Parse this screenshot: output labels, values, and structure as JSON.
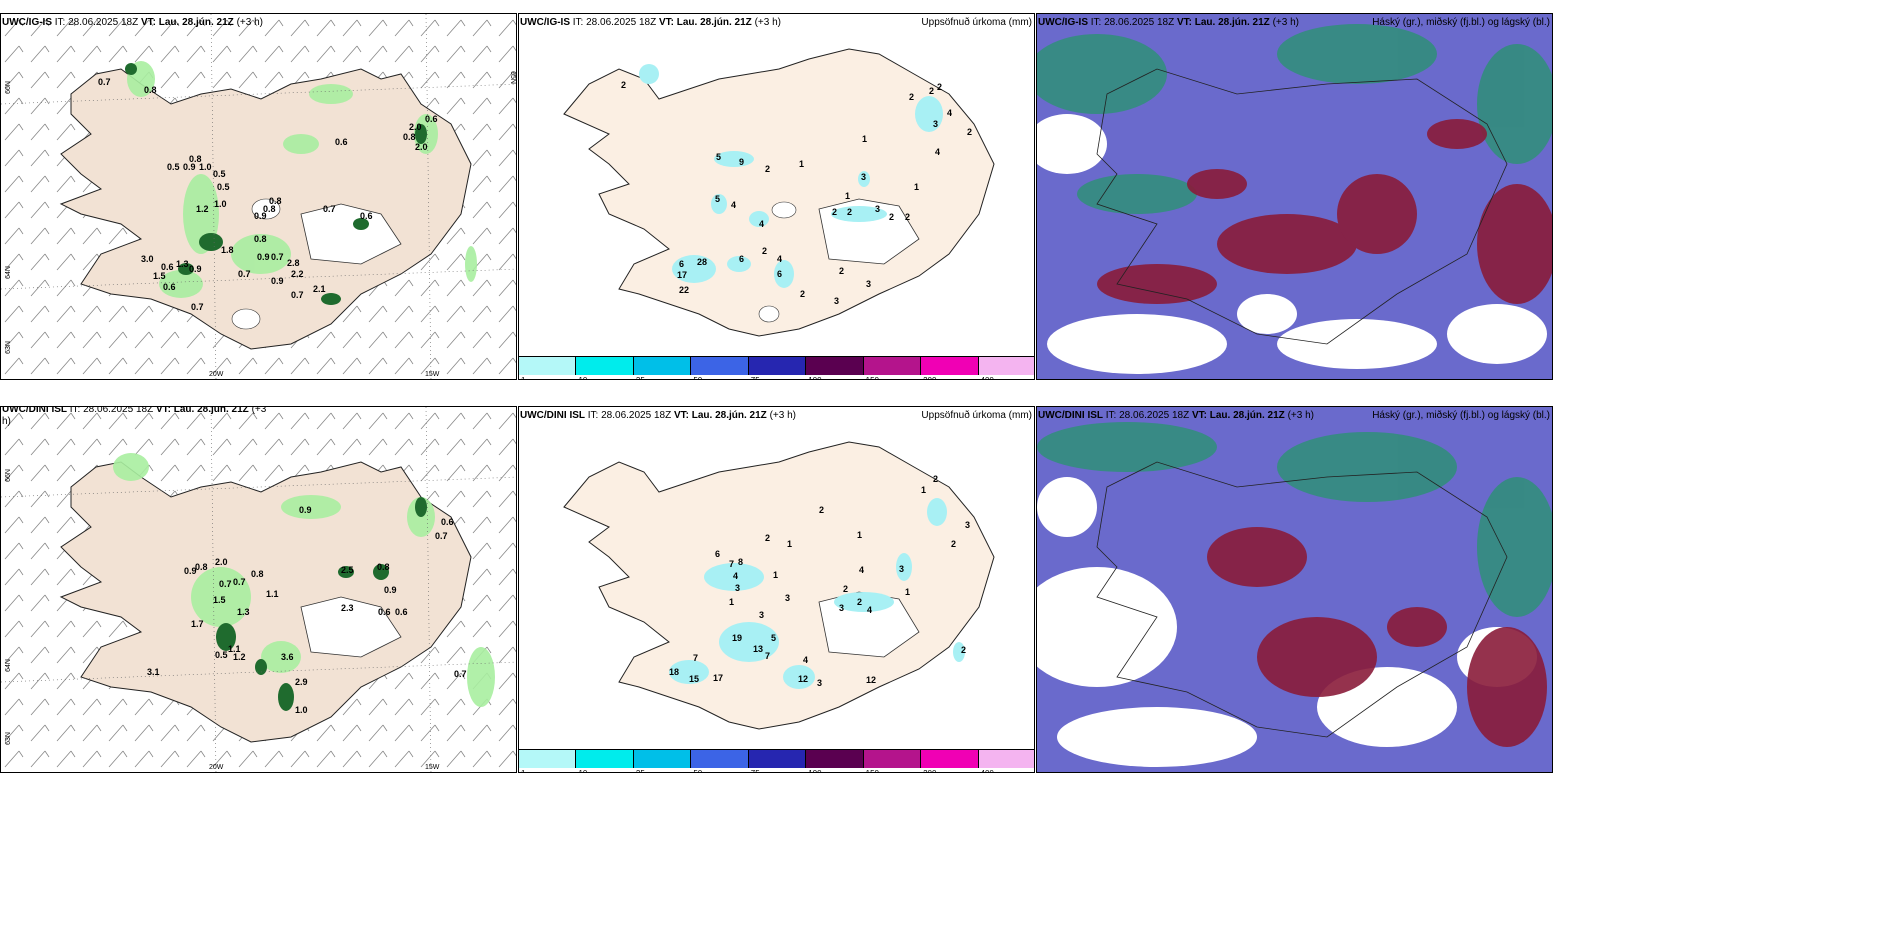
{
  "colors": {
    "land": "#f5e6d8",
    "land_rain": "#fbf0e6",
    "light_green": "#a8eea0",
    "dark_green": "#1f6b2e",
    "cyan": "#a8f0f4",
    "blue": "#5a5acb",
    "red": "#8a1c3a",
    "teal": "#3a9a80"
  },
  "panels": [
    {
      "model": "UWC/IG-IS",
      "it": "IT: 28.06.2025 18Z",
      "vt": "VT: Lau. 28.jún. 21Z",
      "lead": "(+3 h)",
      "right_title": ""
    },
    {
      "model": "UWC/IG-IS",
      "it": "IT: 28.06.2025 18Z",
      "vt": "VT: Lau. 28.jún. 21Z",
      "lead": "(+3 h)",
      "right_title": "Uppsöfnuð úrkoma (mm)"
    },
    {
      "model": "UWC/IG-IS",
      "it": "IT: 28.06.2025 18Z",
      "vt": "VT: Lau. 28.jún. 21Z",
      "lead": "(+3 h)",
      "right_title": "Háský (gr.), miðský (fj.bl.) og lágský (bl.)"
    },
    {
      "model": "UWC/DINI ISL",
      "it": "IT: 28.06.2025 18Z",
      "vt": "VT: Lau. 28.jún. 21Z",
      "lead": "(+3",
      "lead2": "h)",
      "right_title": ""
    },
    {
      "model": "UWC/DINI ISL",
      "it": "IT: 28.06.2025 18Z",
      "vt": "VT: Lau. 28.jún. 21Z",
      "lead": "(+3 h)",
      "right_title": "Uppsöfnuð úrkoma (mm)"
    },
    {
      "model": "UWC/DINI ISL",
      "it": "IT: 28.06.2025 18Z",
      "vt": "VT: Lau. 28.jún. 21Z",
      "lead": "(+3 h)",
      "right_title": "Háský (gr.), miðský (fj.bl.) og lágský (bl.)"
    }
  ],
  "axes": {
    "lat66": "66N",
    "lat64": "64N",
    "lat65": "65N",
    "lat63": "63N",
    "lon20": "20W",
    "lon15": "15W"
  },
  "colorbar": {
    "ticks": [
      "1",
      "10",
      "25",
      "50",
      "75",
      "100",
      "150",
      "200",
      "400"
    ],
    "colors": [
      "#b4f8f8",
      "#00ecec",
      "#00bfe8",
      "#3c64e6",
      "#2626b0",
      "#5a0050",
      "#b4148c",
      "#f000b4",
      "#f4b4f0"
    ]
  },
  "wind_labels_top": [
    "0.7",
    "0.8",
    "0.6",
    "0.8",
    "2.0",
    "2.0",
    "0.6",
    "0.5",
    "0.8",
    "0.9",
    "1.0",
    "0.5",
    "0.5",
    "1.2",
    "1.0",
    "0.8",
    "0.9",
    "0.8",
    "0.7",
    "0.6",
    "0.8",
    "3.0",
    "0.6",
    "1.5",
    "1.3",
    "0.9",
    "0.6",
    "1.8",
    "0.7",
    "0.9",
    "0.7",
    "2.8",
    "2.2",
    "0.9",
    "0.7",
    "2.1",
    "0.7"
  ],
  "wind_labels_bottom": [
    "0.9",
    "0.6",
    "0.7",
    "0.9",
    "0.8",
    "2.0",
    "0.7",
    "0.8",
    "0.7",
    "2.5",
    "0.8",
    "1.5",
    "2.3",
    "0.9",
    "1.1",
    "0.6",
    "0.6",
    "1.3",
    "1.7",
    "0.5",
    "1.1",
    "1.2",
    "3.1",
    "3.6",
    "2.9",
    "1.0",
    "0.7"
  ],
  "precip_top": [
    "2",
    "2",
    "2",
    "2",
    "4",
    "3",
    "2",
    "4",
    "1",
    "5",
    "9",
    "2",
    "1",
    "3",
    "1",
    "5",
    "4",
    "1",
    "2",
    "2",
    "3",
    "2",
    "2",
    "6",
    "4",
    "2",
    "28",
    "6",
    "17",
    "22",
    "4",
    "6",
    "2",
    "3",
    "2",
    "3"
  ],
  "precip_bottom": [
    "2",
    "1",
    "2",
    "1",
    "2",
    "1",
    "3",
    "2",
    "6",
    "7",
    "8",
    "4",
    "3",
    "1",
    "4",
    "3",
    "1",
    "3",
    "3",
    "2",
    "2",
    "4",
    "3",
    "1",
    "5",
    "19",
    "13",
    "7",
    "18",
    "15",
    "17",
    "7",
    "4",
    "12",
    "3",
    "12",
    "2"
  ]
}
